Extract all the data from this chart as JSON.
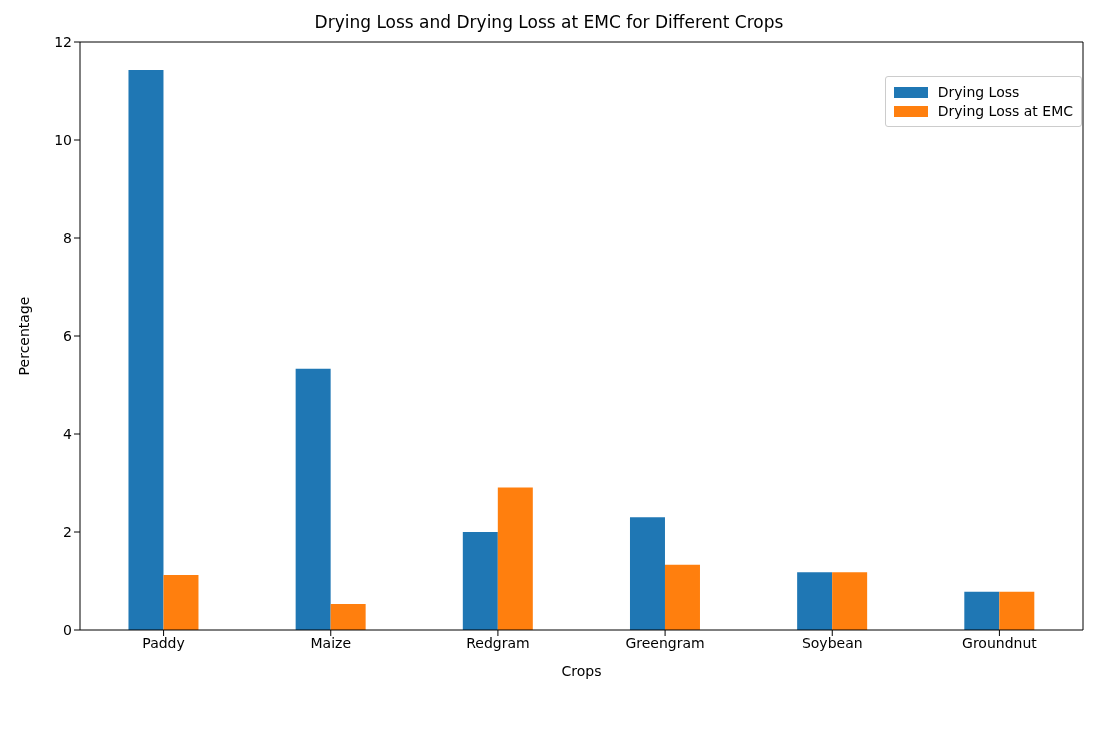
{
  "chart_data": {
    "type": "bar",
    "title": "Drying Loss and Drying Loss at EMC for Different Crops",
    "xlabel": "Crops",
    "ylabel": "Percentage",
    "categories": [
      "Paddy",
      "Maize",
      "Redgram",
      "Greengram",
      "Soybean",
      "Groundnut"
    ],
    "series": [
      {
        "name": "Drying Loss",
        "color": "#1f77b4",
        "values": [
          11.43,
          5.33,
          2.0,
          2.3,
          1.18,
          0.78
        ]
      },
      {
        "name": "Drying Loss at EMC",
        "color": "#ff7f0e",
        "values": [
          1.12,
          0.53,
          2.91,
          1.33,
          1.18,
          0.78
        ]
      }
    ],
    "ylim": [
      0,
      12
    ],
    "yticks": [
      0,
      2,
      4,
      6,
      8,
      10,
      12
    ],
    "grid": false,
    "legend": "top right"
  }
}
